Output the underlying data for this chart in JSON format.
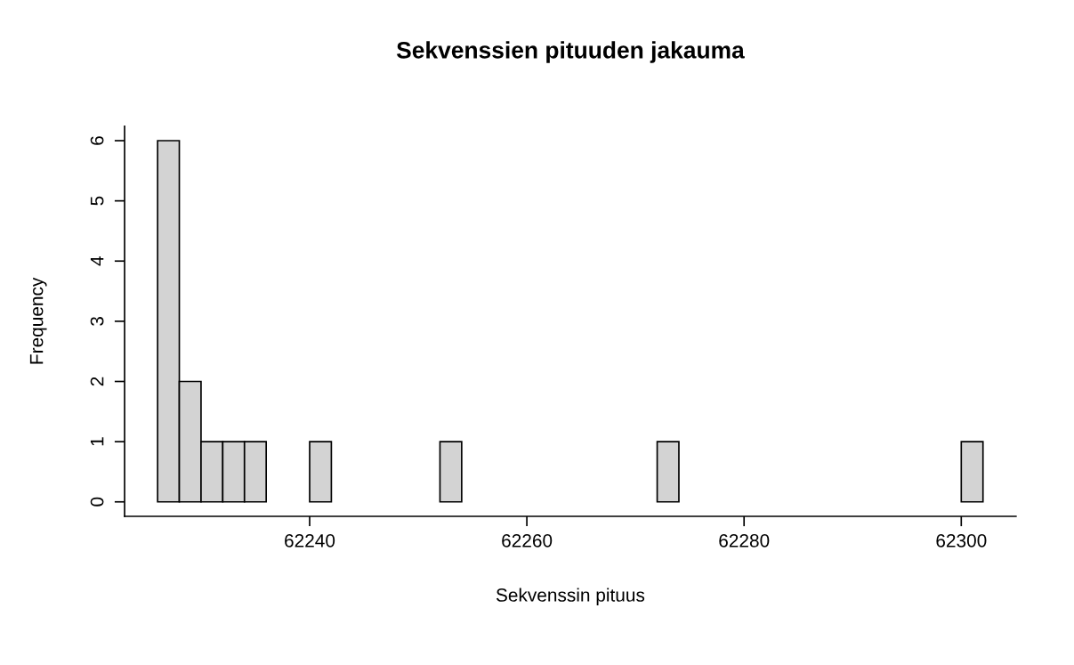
{
  "chart_data": {
    "type": "histogram",
    "title": "Sekvenssien pituuden jakauma",
    "xlabel": "Sekvenssin pituus",
    "ylabel": "Frequency",
    "bins": [
      62226,
      62228,
      62230,
      62232,
      62234,
      62236,
      62238,
      62240,
      62242,
      62244,
      62246,
      62248,
      62250,
      62252,
      62254,
      62256,
      62258,
      62260,
      62262,
      62264,
      62266,
      62268,
      62270,
      62272,
      62274,
      62276,
      62278,
      62280,
      62282,
      62284,
      62286,
      62288,
      62290,
      62292,
      62294,
      62296,
      62298,
      62300,
      62302
    ],
    "values": [
      6,
      2,
      1,
      1,
      1,
      0,
      0,
      1,
      0,
      0,
      0,
      0,
      0,
      1,
      0,
      0,
      0,
      0,
      0,
      0,
      0,
      0,
      0,
      1,
      0,
      0,
      0,
      0,
      0,
      0,
      0,
      0,
      0,
      0,
      0,
      0,
      0,
      1
    ],
    "color": "#d3d3d3",
    "xlim": [
      62222.96,
      62305.04
    ],
    "xticks": [
      62240,
      62260,
      62280,
      62300
    ],
    "ylim": [
      -0.24,
      6.24
    ],
    "yticks": [
      0,
      1,
      2,
      3,
      4,
      5,
      6
    ],
    "grid": false
  }
}
